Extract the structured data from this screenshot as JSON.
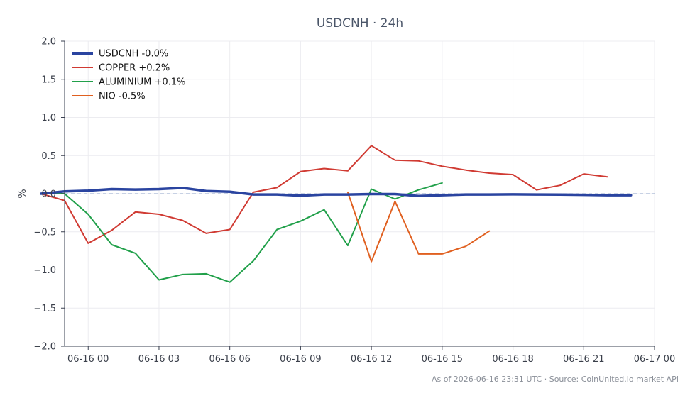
{
  "chart_data": {
    "type": "line",
    "title": "USDCNH · 24h",
    "xlabel": "",
    "ylabel": "%",
    "ylim": [
      -2.0,
      2.0
    ],
    "yticks": [
      -2.0,
      -1.5,
      -1.0,
      -0.5,
      0.0,
      0.5,
      1.0,
      1.5,
      2.0
    ],
    "ytick_labels": [
      "−2.0",
      "−1.5",
      "−1.0",
      "−0.5",
      "0.0",
      "0.5",
      "1.0",
      "1.5",
      "2.0"
    ],
    "xlim": [
      "06-15 23:00",
      "06-17 00:00"
    ],
    "xtick_labels": [
      "06-16 00",
      "06-16 03",
      "06-16 06",
      "06-16 09",
      "06-16 12",
      "06-16 15",
      "06-16 18",
      "06-16 21",
      "06-17 00"
    ],
    "zero_line": true,
    "grid": true,
    "legend_position": "top-left",
    "series": [
      {
        "name": "USDCNH -0.0%",
        "color": "#2a44a0",
        "emphasis": true,
        "x": [
          "06-15 22:00",
          "06-15 23:00",
          "06-16 00:00",
          "06-16 01:00",
          "06-16 02:00",
          "06-16 03:00",
          "06-16 04:00",
          "06-16 05:00",
          "06-16 06:00",
          "06-16 07:00",
          "06-16 08:00",
          "06-16 09:00",
          "06-16 10:00",
          "06-16 11:00",
          "06-16 12:00",
          "06-16 13:00",
          "06-16 14:00",
          "06-16 15:00",
          "06-16 16:00",
          "06-16 17:00",
          "06-16 18:00",
          "06-16 19:00",
          "06-16 20:00",
          "06-16 21:00",
          "06-16 22:00",
          "06-16 23:00"
        ],
        "values": [
          0.0,
          0.03,
          0.04,
          0.06,
          0.055,
          0.06,
          0.075,
          0.035,
          0.025,
          -0.01,
          -0.01,
          -0.025,
          -0.01,
          -0.01,
          -0.005,
          -0.005,
          -0.03,
          -0.02,
          -0.01,
          -0.01,
          -0.008,
          -0.01,
          -0.012,
          -0.015,
          -0.02,
          -0.02
        ]
      },
      {
        "name": "COPPER +0.2%",
        "color": "#d03a32",
        "x": [
          "06-15 22:00",
          "06-15 23:00",
          "06-16 00:00",
          "06-16 01:00",
          "06-16 02:00",
          "06-16 03:00",
          "06-16 04:00",
          "06-16 05:00",
          "06-16 06:00",
          "06-16 07:00",
          "06-16 08:00",
          "06-16 09:00",
          "06-16 10:00",
          "06-16 11:00",
          "06-16 12:00",
          "06-16 13:00",
          "06-16 14:00",
          "06-16 15:00",
          "06-16 16:00",
          "06-16 17:00",
          "06-16 18:00",
          "06-16 19:00",
          "06-16 20:00",
          "06-16 21:00",
          "06-16 22:00"
        ],
        "values": [
          0.0,
          -0.09,
          -0.65,
          -0.48,
          -0.24,
          -0.27,
          -0.35,
          -0.52,
          -0.47,
          0.02,
          0.08,
          0.29,
          0.33,
          0.3,
          0.63,
          0.44,
          0.43,
          0.36,
          0.31,
          0.27,
          0.25,
          0.05,
          0.11,
          0.26,
          0.22
        ]
      },
      {
        "name": "ALUMINIUM +0.1%",
        "color": "#21a04a",
        "x": [
          "06-15 22:00",
          "06-15 23:00",
          "06-16 00:00",
          "06-16 01:00",
          "06-16 02:00",
          "06-16 03:00",
          "06-16 04:00",
          "06-16 05:00",
          "06-16 06:00",
          "06-16 07:00",
          "06-16 08:00",
          "06-16 09:00",
          "06-16 10:00",
          "06-16 11:00",
          "06-16 12:00",
          "06-16 13:00",
          "06-16 14:00",
          "06-16 15:00"
        ],
        "values": [
          0.0,
          0.0,
          -0.27,
          -0.67,
          -0.78,
          -1.13,
          -1.06,
          -1.05,
          -1.16,
          -0.88,
          -0.47,
          -0.36,
          -0.21,
          -0.68,
          0.06,
          -0.07,
          0.05,
          0.14
        ]
      },
      {
        "name": "NIO -0.5%",
        "color": "#e06020",
        "x": [
          "06-16 11:00",
          "06-16 12:00",
          "06-16 13:00",
          "06-16 14:00",
          "06-16 15:00",
          "06-16 16:00",
          "06-16 17:00"
        ],
        "values": [
          0.02,
          -0.89,
          -0.1,
          -0.79,
          -0.79,
          -0.69,
          -0.49
        ]
      }
    ]
  },
  "footer": "As of 2026-06-16 23:31 UTC · Source: CoinUnited.io market API"
}
